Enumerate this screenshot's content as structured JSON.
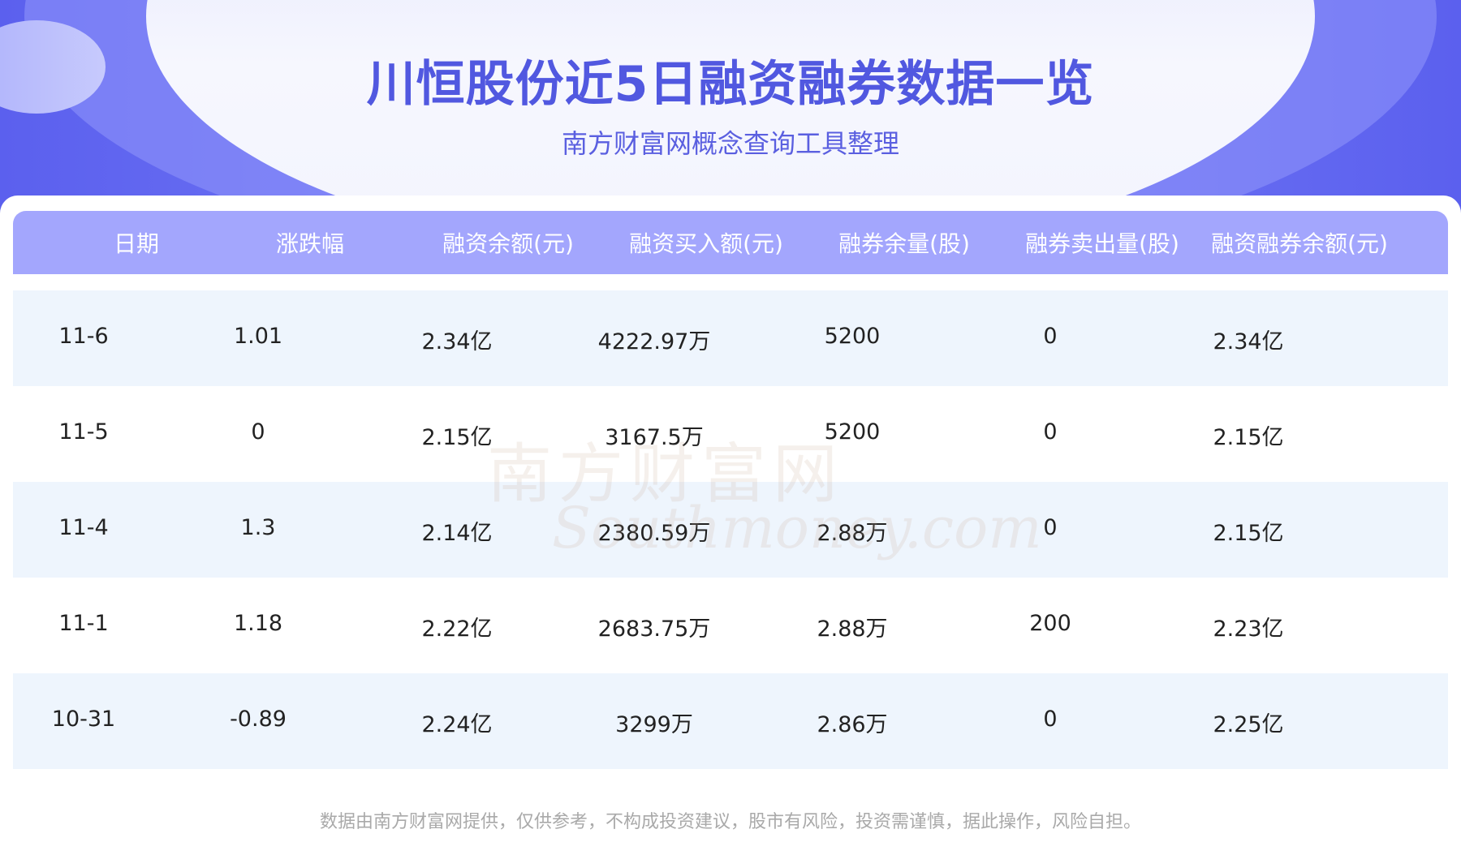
{
  "header": {
    "title": "川恒股份近5日融资融券数据一览",
    "subtitle": "南方财富网概念查询工具整理"
  },
  "table": {
    "columns": [
      "日期",
      "涨跌幅",
      "融资余额(元)",
      "融资买入额(元)",
      "融券余量(股)",
      "融券卖出量(股)",
      "融资融券余额(元)"
    ],
    "rows": [
      [
        "11-6",
        "1.01",
        "2.34亿",
        "4222.97万",
        "5200",
        "0",
        "2.34亿"
      ],
      [
        "11-5",
        "0",
        "2.15亿",
        "3167.5万",
        "5200",
        "0",
        "2.15亿"
      ],
      [
        "11-4",
        "1.3",
        "2.14亿",
        "2380.59万",
        "2.88万",
        "0",
        "2.15亿"
      ],
      [
        "11-1",
        "1.18",
        "2.22亿",
        "2683.75万",
        "2.88万",
        "200",
        "2.23亿"
      ],
      [
        "10-31",
        "-0.89",
        "2.24亿",
        "3299万",
        "2.86万",
        "0",
        "2.25亿"
      ]
    ]
  },
  "watermark": {
    "cn": "南方财富网",
    "en": "Southmoney.com"
  },
  "footer": "数据由南方财富网提供，仅供参考，不构成投资建议，股市有风险，投资需谨慎，据此操作，风险自担。",
  "colors": {
    "accent": "#5158e0",
    "header_bg": "#a3a6fd",
    "row_alt": "#eef5fd"
  }
}
